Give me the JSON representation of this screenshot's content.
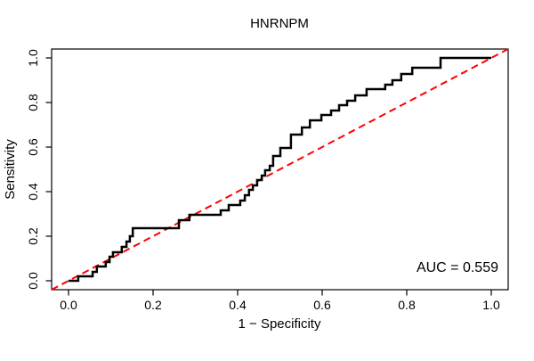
{
  "chart_data": {
    "type": "line",
    "subtype": "roc-curve-step-plot",
    "title": "HNRNPM",
    "xlabel": "1 − Specificity",
    "ylabel": "Sensitivity",
    "xlim": [
      0.0,
      1.0
    ],
    "ylim": [
      0.0,
      1.0
    ],
    "x_tick_labels": [
      "0.0",
      "0.2",
      "0.4",
      "0.6",
      "0.8",
      "1.0"
    ],
    "y_tick_labels": [
      "0.0",
      "0.2",
      "0.4",
      "0.6",
      "0.8",
      "1.0"
    ],
    "x_tick_values": [
      0.0,
      0.2,
      0.4,
      0.6,
      0.8,
      1.0
    ],
    "y_tick_values": [
      0.0,
      0.2,
      0.4,
      0.6,
      0.8,
      1.0
    ],
    "grid": "off",
    "annotation": "AUC = 0.559",
    "auc_value": 0.559,
    "series": [
      {
        "name": "ROC curve",
        "color": "#000000",
        "line_style": "solid",
        "step": true,
        "points": [
          [
            0,
            0
          ],
          [
            0.023,
            0
          ],
          [
            0.023,
            0.02
          ],
          [
            0.057,
            0.02
          ],
          [
            0.057,
            0.04
          ],
          [
            0.067,
            0.04
          ],
          [
            0.067,
            0.064
          ],
          [
            0.088,
            0.064
          ],
          [
            0.088,
            0.084
          ],
          [
            0.097,
            0.084
          ],
          [
            0.097,
            0.108
          ],
          [
            0.105,
            0.108
          ],
          [
            0.105,
            0.128
          ],
          [
            0.126,
            0.128
          ],
          [
            0.126,
            0.152
          ],
          [
            0.137,
            0.152
          ],
          [
            0.137,
            0.176
          ],
          [
            0.145,
            0.176
          ],
          [
            0.145,
            0.2
          ],
          [
            0.152,
            0.2
          ],
          [
            0.152,
            0.236
          ],
          [
            0.261,
            0.236
          ],
          [
            0.261,
            0.272
          ],
          [
            0.286,
            0.272
          ],
          [
            0.286,
            0.296
          ],
          [
            0.36,
            0.296
          ],
          [
            0.36,
            0.316
          ],
          [
            0.379,
            0.316
          ],
          [
            0.379,
            0.34
          ],
          [
            0.406,
            0.34
          ],
          [
            0.406,
            0.36
          ],
          [
            0.417,
            0.36
          ],
          [
            0.417,
            0.384
          ],
          [
            0.427,
            0.384
          ],
          [
            0.427,
            0.408
          ],
          [
            0.436,
            0.408
          ],
          [
            0.436,
            0.428
          ],
          [
            0.446,
            0.428
          ],
          [
            0.446,
            0.452
          ],
          [
            0.457,
            0.452
          ],
          [
            0.457,
            0.472
          ],
          [
            0.465,
            0.472
          ],
          [
            0.465,
            0.496
          ],
          [
            0.476,
            0.496
          ],
          [
            0.476,
            0.516
          ],
          [
            0.484,
            0.516
          ],
          [
            0.484,
            0.56
          ],
          [
            0.501,
            0.56
          ],
          [
            0.501,
            0.596
          ],
          [
            0.526,
            0.596
          ],
          [
            0.526,
            0.656
          ],
          [
            0.552,
            0.656
          ],
          [
            0.552,
            0.688
          ],
          [
            0.571,
            0.688
          ],
          [
            0.571,
            0.72
          ],
          [
            0.598,
            0.72
          ],
          [
            0.598,
            0.744
          ],
          [
            0.621,
            0.744
          ],
          [
            0.621,
            0.764
          ],
          [
            0.64,
            0.764
          ],
          [
            0.64,
            0.788
          ],
          [
            0.659,
            0.788
          ],
          [
            0.659,
            0.808
          ],
          [
            0.678,
            0.808
          ],
          [
            0.678,
            0.832
          ],
          [
            0.705,
            0.832
          ],
          [
            0.705,
            0.86
          ],
          [
            0.749,
            0.86
          ],
          [
            0.749,
            0.88
          ],
          [
            0.766,
            0.88
          ],
          [
            0.766,
            0.9
          ],
          [
            0.787,
            0.9
          ],
          [
            0.787,
            0.928
          ],
          [
            0.813,
            0.928
          ],
          [
            0.813,
            0.956
          ],
          [
            0.88,
            0.956
          ],
          [
            0.88,
            1
          ],
          [
            1,
            1
          ]
        ]
      },
      {
        "name": "chance reference line",
        "color": "#FF0000",
        "line_style": "dashed",
        "step": false,
        "points": [
          [
            0,
            0
          ],
          [
            1,
            1
          ]
        ]
      }
    ]
  }
}
